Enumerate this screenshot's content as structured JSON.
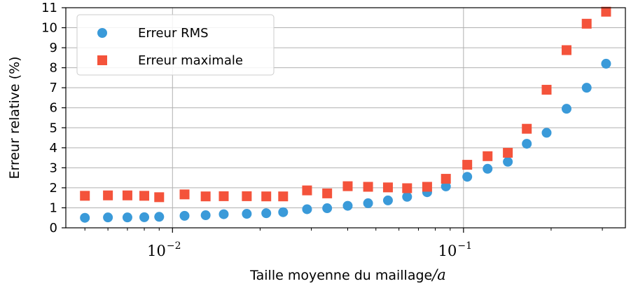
{
  "chart_data": {
    "type": "scatter",
    "title": "",
    "xlabel": "Taille moyenne du maillage",
    "xlabel_suffix": "/a",
    "ylabel": "Erreur relative (%)",
    "xscale": "log",
    "xlim": [
      0.0043,
      0.36
    ],
    "ylim": [
      0,
      11
    ],
    "yticks": [
      "0",
      "1",
      "2",
      "3",
      "4",
      "5",
      "6",
      "7",
      "8",
      "9",
      "10",
      "11"
    ],
    "xticks": [
      {
        "value": 0.01,
        "base": "10",
        "exp": "−2"
      },
      {
        "value": 0.1,
        "base": "10",
        "exp": "−1"
      }
    ],
    "grid": true,
    "legend_position": "top-left",
    "x": [
      0.005,
      0.006,
      0.007,
      0.008,
      0.009,
      0.011,
      0.013,
      0.015,
      0.018,
      0.021,
      0.024,
      0.029,
      0.034,
      0.04,
      0.047,
      0.055,
      0.064,
      0.075,
      0.087,
      0.103,
      0.121,
      0.142,
      0.165,
      0.193,
      0.226,
      0.265,
      0.309
    ],
    "series": [
      {
        "name": "Erreur RMS",
        "marker": "circle",
        "color": "#3a9ad9",
        "values": [
          0.5,
          0.52,
          0.52,
          0.53,
          0.55,
          0.6,
          0.63,
          0.68,
          0.7,
          0.73,
          0.78,
          0.93,
          0.98,
          1.1,
          1.23,
          1.37,
          1.55,
          1.78,
          2.07,
          2.55,
          2.95,
          3.3,
          4.2,
          4.75,
          5.95,
          7.0,
          8.2
        ]
      },
      {
        "name": "Erreur maximale",
        "marker": "square",
        "color": "#f4533b",
        "values": [
          1.6,
          1.62,
          1.62,
          1.6,
          1.53,
          1.67,
          1.57,
          1.58,
          1.58,
          1.57,
          1.57,
          1.87,
          1.72,
          2.08,
          2.05,
          2.02,
          1.98,
          2.05,
          2.45,
          3.15,
          3.58,
          3.75,
          4.95,
          6.9,
          8.88,
          10.2,
          10.8
        ]
      }
    ]
  }
}
